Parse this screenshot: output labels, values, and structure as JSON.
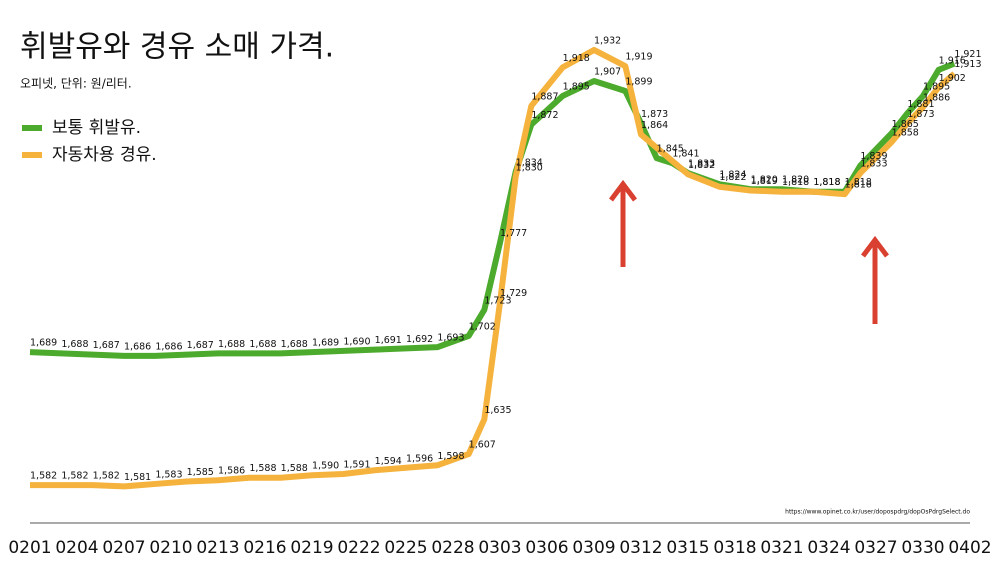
{
  "chart_data": {
    "type": "line",
    "title": "휘발유와 경유 소매 가격.",
    "subtitle": "오피넷, 단위: 원/리터.",
    "source": "https://www.opinet.co.kr/user/dopospdrg/dopOsPdrgSelect.do",
    "xticks": [
      "0201",
      "0204",
      "0207",
      "0210",
      "0213",
      "0216",
      "0219",
      "0222",
      "0225",
      "0228",
      "0303",
      "0306",
      "0309",
      "0312",
      "0315",
      "0318",
      "0321",
      "0324",
      "0327",
      "0330",
      "0402"
    ],
    "ylim": [
      1554,
      1940
    ],
    "legend": "top-left",
    "series": [
      {
        "name": "보통 휘발유.",
        "color": "#4caa2c",
        "x": [
          "0201",
          "0203",
          "0205",
          "0207",
          "0209",
          "0211",
          "0213",
          "0215",
          "0217",
          "0219",
          "0221",
          "0223",
          "0225",
          "0227",
          "0301",
          "0302",
          "0303",
          "0304",
          "0305",
          "0307",
          "0309",
          "0311",
          "0312",
          "0313",
          "0314",
          "0315",
          "0317",
          "0319",
          "0321",
          "0323",
          "0325",
          "0326",
          "0328",
          "0329",
          "0330",
          "0331",
          "0401"
        ],
        "values": [
          1689,
          1688,
          1687,
          1686,
          1686,
          1687,
          1688,
          1688,
          1688,
          1689,
          1690,
          1691,
          1692,
          1693,
          1702,
          1723,
          1777,
          1834,
          1872,
          1895,
          1907,
          1899,
          1873,
          1845,
          1841,
          1833,
          1824,
          1820,
          1820,
          1818,
          1818,
          1839,
          1865,
          1881,
          1895,
          1916,
          1921
        ],
        "value_labels": [
          "1,689",
          "1,688",
          "1,687",
          "1,686",
          "1,686",
          "1,687",
          "1,688",
          "1,688",
          "1,688",
          "1,689",
          "1,690",
          "1,691",
          "1,692",
          "1,693",
          "1,702",
          "1,723",
          "1,777",
          "1,834",
          "1,872",
          "1,895",
          "1,907",
          "1,899",
          "1,873",
          "1,845",
          "1,841",
          "1,833",
          "1,824",
          "1,820",
          "1,820",
          "1,818",
          "1,818",
          "1,839",
          "1,865",
          "1,881",
          "1,895",
          "1,916",
          "1,921"
        ]
      },
      {
        "name": "자동차용 경유.",
        "color": "#f5b23c",
        "x": [
          "0201",
          "0203",
          "0205",
          "0207",
          "0209",
          "0211",
          "0213",
          "0215",
          "0217",
          "0219",
          "0221",
          "0223",
          "0225",
          "0227",
          "0301",
          "0302",
          "0303",
          "0304",
          "0305",
          "0307",
          "0309",
          "0311",
          "0312",
          "0315",
          "0317",
          "0319",
          "0321",
          "0323",
          "0325",
          "0326",
          "0328",
          "0329",
          "0330",
          "0331",
          "0401"
        ],
        "values": [
          1582,
          1582,
          1582,
          1581,
          1583,
          1585,
          1586,
          1588,
          1588,
          1590,
          1591,
          1594,
          1596,
          1598,
          1607,
          1635,
          1729,
          1830,
          1887,
          1918,
          1932,
          1919,
          1864,
          1832,
          1822,
          1819,
          1818,
          1818,
          1816,
          1833,
          1858,
          1873,
          1886,
          1902,
          1913
        ],
        "value_labels": [
          "1,582",
          "1,582",
          "1,582",
          "1,581",
          "1,583",
          "1,585",
          "1,586",
          "1,588",
          "1,588",
          "1,590",
          "1,591",
          "1,594",
          "1,596",
          "1,598",
          "1,607",
          "1,635",
          "1,729",
          "1,830",
          "1,887",
          "1,918",
          "1,932",
          "1,919",
          "1,864",
          "1,832",
          "1,822",
          "1,819",
          "1,818",
          "1,818",
          "1,816",
          "1,833",
          "1,858",
          "1,873",
          "1,886",
          "1,902",
          "1,913"
        ]
      }
    ]
  }
}
